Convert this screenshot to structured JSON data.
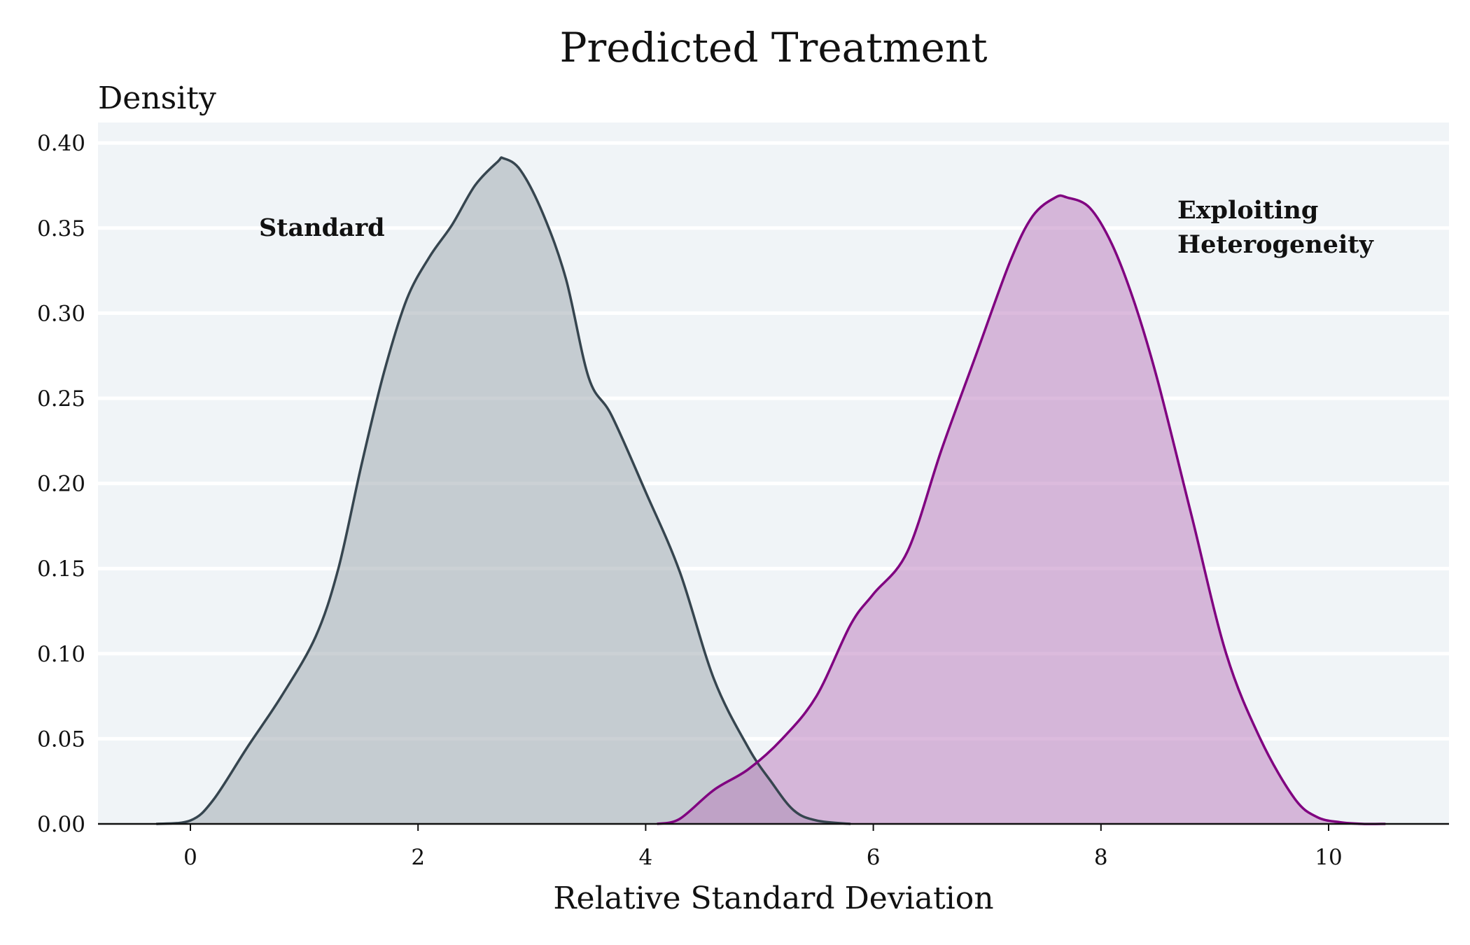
{
  "chart_data": {
    "type": "area",
    "title": "Predicted Treatment",
    "xlabel": "Relative Standard Deviation",
    "ylabel": "Density",
    "xlim": [
      -0.8,
      11.05
    ],
    "ylim": [
      0,
      0.4
    ],
    "grid": "horizontal",
    "x_ticks": [
      "0",
      "2",
      "4",
      "6",
      "8",
      "10"
    ],
    "y_ticks": [
      "0.00",
      "0.05",
      "0.10",
      "0.15",
      "0.20",
      "0.25",
      "0.30",
      "0.35",
      "0.40"
    ],
    "series": [
      {
        "name": "Standard",
        "label": "Standard",
        "line_color": "#36454f",
        "fill_color": "#9aa4ab",
        "x": [
          -0.3,
          0.0,
          0.2,
          0.5,
          0.8,
          1.1,
          1.3,
          1.5,
          1.7,
          1.9,
          2.1,
          2.3,
          2.5,
          2.7,
          2.75,
          2.9,
          3.1,
          3.3,
          3.5,
          3.7,
          4.0,
          4.3,
          4.6,
          4.9,
          5.1,
          5.3,
          5.5,
          5.8
        ],
        "values": [
          0.0,
          0.002,
          0.014,
          0.045,
          0.075,
          0.11,
          0.15,
          0.21,
          0.265,
          0.308,
          0.333,
          0.352,
          0.375,
          0.389,
          0.391,
          0.384,
          0.358,
          0.32,
          0.262,
          0.24,
          0.195,
          0.148,
          0.085,
          0.045,
          0.025,
          0.008,
          0.002,
          0.0
        ]
      },
      {
        "name": "Exploiting Heterogeneity",
        "label": [
          "Exploiting",
          "Heterogeneity"
        ],
        "line_color": "#800080",
        "fill_color": "#b978bb",
        "x": [
          4.1,
          4.3,
          4.6,
          4.9,
          5.2,
          5.5,
          5.8,
          6.0,
          6.3,
          6.6,
          6.9,
          7.2,
          7.4,
          7.6,
          7.7,
          7.9,
          8.1,
          8.3,
          8.5,
          8.8,
          9.1,
          9.4,
          9.7,
          9.9,
          10.1,
          10.3,
          10.5
        ],
        "values": [
          0.0,
          0.003,
          0.02,
          0.032,
          0.05,
          0.075,
          0.117,
          0.135,
          0.16,
          0.22,
          0.275,
          0.33,
          0.357,
          0.368,
          0.368,
          0.362,
          0.34,
          0.305,
          0.26,
          0.18,
          0.1,
          0.05,
          0.015,
          0.004,
          0.001,
          0.0,
          0.0
        ]
      }
    ]
  }
}
